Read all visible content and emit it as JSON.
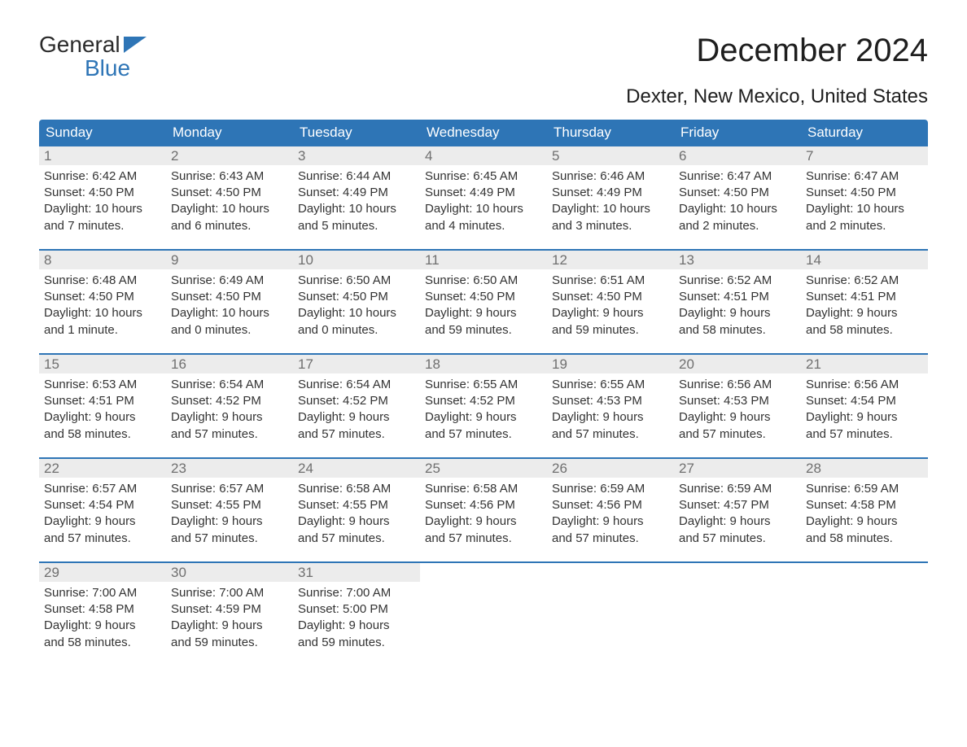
{
  "logo": {
    "line1": "General",
    "line2": "Blue",
    "text_color_top": "#2b2b2b",
    "text_color_bottom": "#2e75b6",
    "icon_fill": "#2e75b6"
  },
  "header": {
    "month_title": "December 2024",
    "location": "Dexter, New Mexico, United States",
    "title_color": "#1e1e1e",
    "title_fontsize": 40,
    "location_fontsize": 24
  },
  "calendar": {
    "type": "table",
    "columns": [
      "Sunday",
      "Monday",
      "Tuesday",
      "Wednesday",
      "Thursday",
      "Friday",
      "Saturday"
    ],
    "header_bg": "#2e75b6",
    "header_text_color": "#ffffff",
    "header_fontsize": 17,
    "week_top_border_color": "#2e75b6",
    "week_top_border_width": 2,
    "daynum_bg": "#ececec",
    "daynum_color": "#6f6f6f",
    "daynum_fontsize": 17,
    "body_fontsize": 15,
    "body_color": "#333333",
    "background_color": "#ffffff",
    "weeks": [
      [
        {
          "n": "1",
          "sunrise": "Sunrise: 6:42 AM",
          "sunset": "Sunset: 4:50 PM",
          "d1": "Daylight: 10 hours",
          "d2": "and 7 minutes."
        },
        {
          "n": "2",
          "sunrise": "Sunrise: 6:43 AM",
          "sunset": "Sunset: 4:50 PM",
          "d1": "Daylight: 10 hours",
          "d2": "and 6 minutes."
        },
        {
          "n": "3",
          "sunrise": "Sunrise: 6:44 AM",
          "sunset": "Sunset: 4:49 PM",
          "d1": "Daylight: 10 hours",
          "d2": "and 5 minutes."
        },
        {
          "n": "4",
          "sunrise": "Sunrise: 6:45 AM",
          "sunset": "Sunset: 4:49 PM",
          "d1": "Daylight: 10 hours",
          "d2": "and 4 minutes."
        },
        {
          "n": "5",
          "sunrise": "Sunrise: 6:46 AM",
          "sunset": "Sunset: 4:49 PM",
          "d1": "Daylight: 10 hours",
          "d2": "and 3 minutes."
        },
        {
          "n": "6",
          "sunrise": "Sunrise: 6:47 AM",
          "sunset": "Sunset: 4:50 PM",
          "d1": "Daylight: 10 hours",
          "d2": "and 2 minutes."
        },
        {
          "n": "7",
          "sunrise": "Sunrise: 6:47 AM",
          "sunset": "Sunset: 4:50 PM",
          "d1": "Daylight: 10 hours",
          "d2": "and 2 minutes."
        }
      ],
      [
        {
          "n": "8",
          "sunrise": "Sunrise: 6:48 AM",
          "sunset": "Sunset: 4:50 PM",
          "d1": "Daylight: 10 hours",
          "d2": "and 1 minute."
        },
        {
          "n": "9",
          "sunrise": "Sunrise: 6:49 AM",
          "sunset": "Sunset: 4:50 PM",
          "d1": "Daylight: 10 hours",
          "d2": "and 0 minutes."
        },
        {
          "n": "10",
          "sunrise": "Sunrise: 6:50 AM",
          "sunset": "Sunset: 4:50 PM",
          "d1": "Daylight: 10 hours",
          "d2": "and 0 minutes."
        },
        {
          "n": "11",
          "sunrise": "Sunrise: 6:50 AM",
          "sunset": "Sunset: 4:50 PM",
          "d1": "Daylight: 9 hours",
          "d2": "and 59 minutes."
        },
        {
          "n": "12",
          "sunrise": "Sunrise: 6:51 AM",
          "sunset": "Sunset: 4:50 PM",
          "d1": "Daylight: 9 hours",
          "d2": "and 59 minutes."
        },
        {
          "n": "13",
          "sunrise": "Sunrise: 6:52 AM",
          "sunset": "Sunset: 4:51 PM",
          "d1": "Daylight: 9 hours",
          "d2": "and 58 minutes."
        },
        {
          "n": "14",
          "sunrise": "Sunrise: 6:52 AM",
          "sunset": "Sunset: 4:51 PM",
          "d1": "Daylight: 9 hours",
          "d2": "and 58 minutes."
        }
      ],
      [
        {
          "n": "15",
          "sunrise": "Sunrise: 6:53 AM",
          "sunset": "Sunset: 4:51 PM",
          "d1": "Daylight: 9 hours",
          "d2": "and 58 minutes."
        },
        {
          "n": "16",
          "sunrise": "Sunrise: 6:54 AM",
          "sunset": "Sunset: 4:52 PM",
          "d1": "Daylight: 9 hours",
          "d2": "and 57 minutes."
        },
        {
          "n": "17",
          "sunrise": "Sunrise: 6:54 AM",
          "sunset": "Sunset: 4:52 PM",
          "d1": "Daylight: 9 hours",
          "d2": "and 57 minutes."
        },
        {
          "n": "18",
          "sunrise": "Sunrise: 6:55 AM",
          "sunset": "Sunset: 4:52 PM",
          "d1": "Daylight: 9 hours",
          "d2": "and 57 minutes."
        },
        {
          "n": "19",
          "sunrise": "Sunrise: 6:55 AM",
          "sunset": "Sunset: 4:53 PM",
          "d1": "Daylight: 9 hours",
          "d2": "and 57 minutes."
        },
        {
          "n": "20",
          "sunrise": "Sunrise: 6:56 AM",
          "sunset": "Sunset: 4:53 PM",
          "d1": "Daylight: 9 hours",
          "d2": "and 57 minutes."
        },
        {
          "n": "21",
          "sunrise": "Sunrise: 6:56 AM",
          "sunset": "Sunset: 4:54 PM",
          "d1": "Daylight: 9 hours",
          "d2": "and 57 minutes."
        }
      ],
      [
        {
          "n": "22",
          "sunrise": "Sunrise: 6:57 AM",
          "sunset": "Sunset: 4:54 PM",
          "d1": "Daylight: 9 hours",
          "d2": "and 57 minutes."
        },
        {
          "n": "23",
          "sunrise": "Sunrise: 6:57 AM",
          "sunset": "Sunset: 4:55 PM",
          "d1": "Daylight: 9 hours",
          "d2": "and 57 minutes."
        },
        {
          "n": "24",
          "sunrise": "Sunrise: 6:58 AM",
          "sunset": "Sunset: 4:55 PM",
          "d1": "Daylight: 9 hours",
          "d2": "and 57 minutes."
        },
        {
          "n": "25",
          "sunrise": "Sunrise: 6:58 AM",
          "sunset": "Sunset: 4:56 PM",
          "d1": "Daylight: 9 hours",
          "d2": "and 57 minutes."
        },
        {
          "n": "26",
          "sunrise": "Sunrise: 6:59 AM",
          "sunset": "Sunset: 4:56 PM",
          "d1": "Daylight: 9 hours",
          "d2": "and 57 minutes."
        },
        {
          "n": "27",
          "sunrise": "Sunrise: 6:59 AM",
          "sunset": "Sunset: 4:57 PM",
          "d1": "Daylight: 9 hours",
          "d2": "and 57 minutes."
        },
        {
          "n": "28",
          "sunrise": "Sunrise: 6:59 AM",
          "sunset": "Sunset: 4:58 PM",
          "d1": "Daylight: 9 hours",
          "d2": "and 58 minutes."
        }
      ],
      [
        {
          "n": "29",
          "sunrise": "Sunrise: 7:00 AM",
          "sunset": "Sunset: 4:58 PM",
          "d1": "Daylight: 9 hours",
          "d2": "and 58 minutes."
        },
        {
          "n": "30",
          "sunrise": "Sunrise: 7:00 AM",
          "sunset": "Sunset: 4:59 PM",
          "d1": "Daylight: 9 hours",
          "d2": "and 59 minutes."
        },
        {
          "n": "31",
          "sunrise": "Sunrise: 7:00 AM",
          "sunset": "Sunset: 5:00 PM",
          "d1": "Daylight: 9 hours",
          "d2": "and 59 minutes."
        },
        null,
        null,
        null,
        null
      ]
    ]
  }
}
